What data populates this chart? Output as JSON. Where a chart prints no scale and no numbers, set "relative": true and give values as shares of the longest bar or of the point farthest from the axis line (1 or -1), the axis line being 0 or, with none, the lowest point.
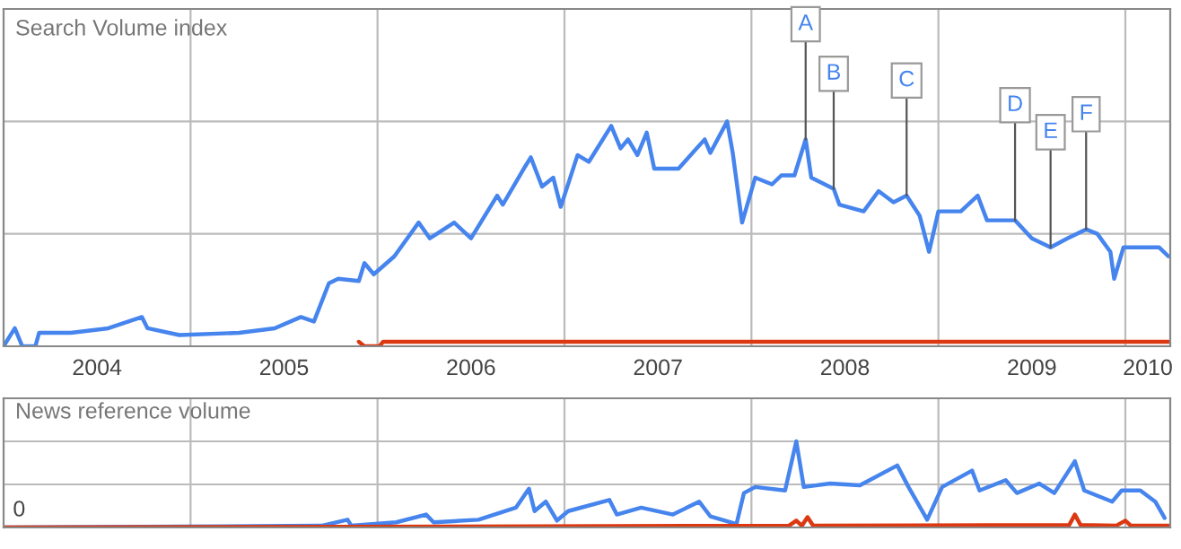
{
  "chart_data": [
    {
      "type": "line",
      "relative": true,
      "ylabel": "Search Volume index",
      "grid": true,
      "tick_labels": "x",
      "xlim": [
        2004.0,
        2010.24
      ],
      "xticks": [
        {
          "value": 2004.5,
          "label": "2004"
        },
        {
          "value": 2005.5,
          "label": "2005"
        },
        {
          "value": 2006.5,
          "label": "2006"
        },
        {
          "value": 2007.5,
          "label": "2007"
        },
        {
          "value": 2008.5,
          "label": "2008"
        },
        {
          "value": 2009.5,
          "label": "2009"
        },
        {
          "value": 2010.12,
          "label": "2010"
        },
        {
          "value": 2005,
          "label": null
        },
        {
          "value": 2006,
          "label": null
        },
        {
          "value": 2007,
          "label": null
        },
        {
          "value": 2008,
          "label": null
        },
        {
          "value": 2009,
          "label": null
        },
        {
          "value": 2010,
          "label": null
        }
      ],
      "series": [
        {
          "color": "#4684ee",
          "x": [
            2004.0,
            2004.06,
            2004.1,
            2004.17,
            2004.19,
            2004.36,
            2004.56,
            2004.74,
            2004.77,
            2004.94,
            2005.26,
            2005.45,
            2005.59,
            2005.66,
            2005.74,
            2005.79,
            2005.9,
            2005.93,
            2005.98,
            2006.09,
            2006.22,
            2006.28,
            2006.41,
            2006.5,
            2006.64,
            2006.67,
            2006.79,
            2006.82,
            2006.88,
            2006.94,
            2006.98,
            2007.07,
            2007.13,
            2007.25,
            2007.3,
            2007.34,
            2007.39,
            2007.44,
            2007.48,
            2007.61,
            2007.75,
            2007.78,
            2007.87,
            2007.9,
            2007.95,
            2008.02,
            2008.11,
            2008.16,
            2008.23,
            2008.29,
            2008.32,
            2008.44,
            2008.47,
            2008.6,
            2008.68,
            2008.76,
            2008.83,
            2008.9,
            2008.95,
            2009.0,
            2009.12,
            2009.21,
            2009.26,
            2009.41,
            2009.5,
            2009.6,
            2009.69,
            2009.79,
            2009.85,
            2009.92,
            2009.94,
            2009.99,
            2010.18,
            2010.23
          ],
          "values": [
            0,
            0.08,
            0,
            0,
            0.06,
            0.06,
            0.08,
            0.13,
            0.08,
            0.05,
            0.06,
            0.08,
            0.13,
            0.11,
            0.28,
            0.3,
            0.29,
            0.37,
            0.32,
            0.4,
            0.55,
            0.48,
            0.55,
            0.48,
            0.67,
            0.63,
            0.8,
            0.84,
            0.71,
            0.75,
            0.62,
            0.85,
            0.82,
            0.98,
            0.88,
            0.92,
            0.85,
            0.95,
            0.79,
            0.79,
            0.92,
            0.86,
            1.0,
            0.86,
            0.55,
            0.75,
            0.72,
            0.76,
            0.76,
            0.92,
            0.75,
            0.7,
            0.63,
            0.6,
            0.69,
            0.64,
            0.67,
            0.58,
            0.42,
            0.6,
            0.6,
            0.67,
            0.56,
            0.56,
            0.48,
            0.44,
            0.48,
            0.52,
            0.5,
            0.42,
            0.3,
            0.44,
            0.44,
            0.4
          ]
        },
        {
          "color": "#dc3912",
          "x": [
            2005.9,
            2005.93,
            2006.01,
            2006.03,
            2010.23
          ],
          "values": [
            0.02,
            0,
            0,
            0.02,
            0.02
          ]
        }
      ],
      "annotations": [
        {
          "text": "A",
          "x": 2008.29,
          "y": 0.92
        },
        {
          "text": "B",
          "x": 2008.44,
          "y": 0.7
        },
        {
          "text": "C",
          "x": 2008.83,
          "y": 0.67
        },
        {
          "text": "D",
          "x": 2009.41,
          "y": 0.56
        },
        {
          "text": "E",
          "x": 2009.6,
          "y": 0.44
        },
        {
          "text": "F",
          "x": 2009.79,
          "y": 0.52
        }
      ]
    },
    {
      "type": "line",
      "relative": true,
      "ylabel": "News reference volume",
      "grid": true,
      "tick_labels": false,
      "xlim": [
        2004.0,
        2010.24
      ],
      "xticks": [
        {
          "value": 2005,
          "label": null
        },
        {
          "value": 2006,
          "label": null
        },
        {
          "value": 2007,
          "label": null
        },
        {
          "value": 2008,
          "label": null
        },
        {
          "value": 2009,
          "label": null
        },
        {
          "value": 2010,
          "label": null
        }
      ],
      "series": [
        {
          "color": "#4684ee",
          "x": [
            2004.0,
            2005.7,
            2005.84,
            2005.86,
            2006.1,
            2006.26,
            2006.3,
            2006.54,
            2006.74,
            2006.81,
            2006.84,
            2006.9,
            2006.96,
            2007.02,
            2007.24,
            2007.28,
            2007.41,
            2007.58,
            2007.72,
            2007.78,
            2007.92,
            2007.96,
            2008.02,
            2008.18,
            2008.24,
            2008.28,
            2008.42,
            2008.58,
            2008.78,
            2008.84,
            2008.94,
            2009.02,
            2009.18,
            2009.22,
            2009.36,
            2009.42,
            2009.54,
            2009.62,
            2009.73,
            2009.78,
            2009.93,
            2009.98,
            2010.08,
            2010.16,
            2010.21
          ],
          "values": [
            0,
            0.02,
            0.09,
            0.02,
            0.06,
            0.15,
            0.06,
            0.09,
            0.23,
            0.45,
            0.19,
            0.3,
            0.08,
            0.19,
            0.32,
            0.15,
            0.23,
            0.15,
            0.3,
            0.13,
            0.04,
            0.4,
            0.47,
            0.43,
            1.0,
            0.47,
            0.51,
            0.49,
            0.72,
            0.47,
            0.09,
            0.47,
            0.66,
            0.43,
            0.55,
            0.4,
            0.51,
            0.4,
            0.77,
            0.43,
            0.3,
            0.43,
            0.43,
            0.3,
            0.11
          ]
        },
        {
          "color": "#dc3912",
          "x": [
            2004.0,
            2008.2,
            2008.24,
            2008.27,
            2008.3,
            2008.33,
            2009.7,
            2009.73,
            2009.76,
            2009.95,
            2010.0,
            2010.03,
            2010.23
          ],
          "values": [
            0,
            0.02,
            0.08,
            0.02,
            0.12,
            0.02,
            0.03,
            0.15,
            0.03,
            0.02,
            0.08,
            0.02,
            0.02
          ]
        }
      ],
      "annotations": [
        "0"
      ]
    }
  ]
}
